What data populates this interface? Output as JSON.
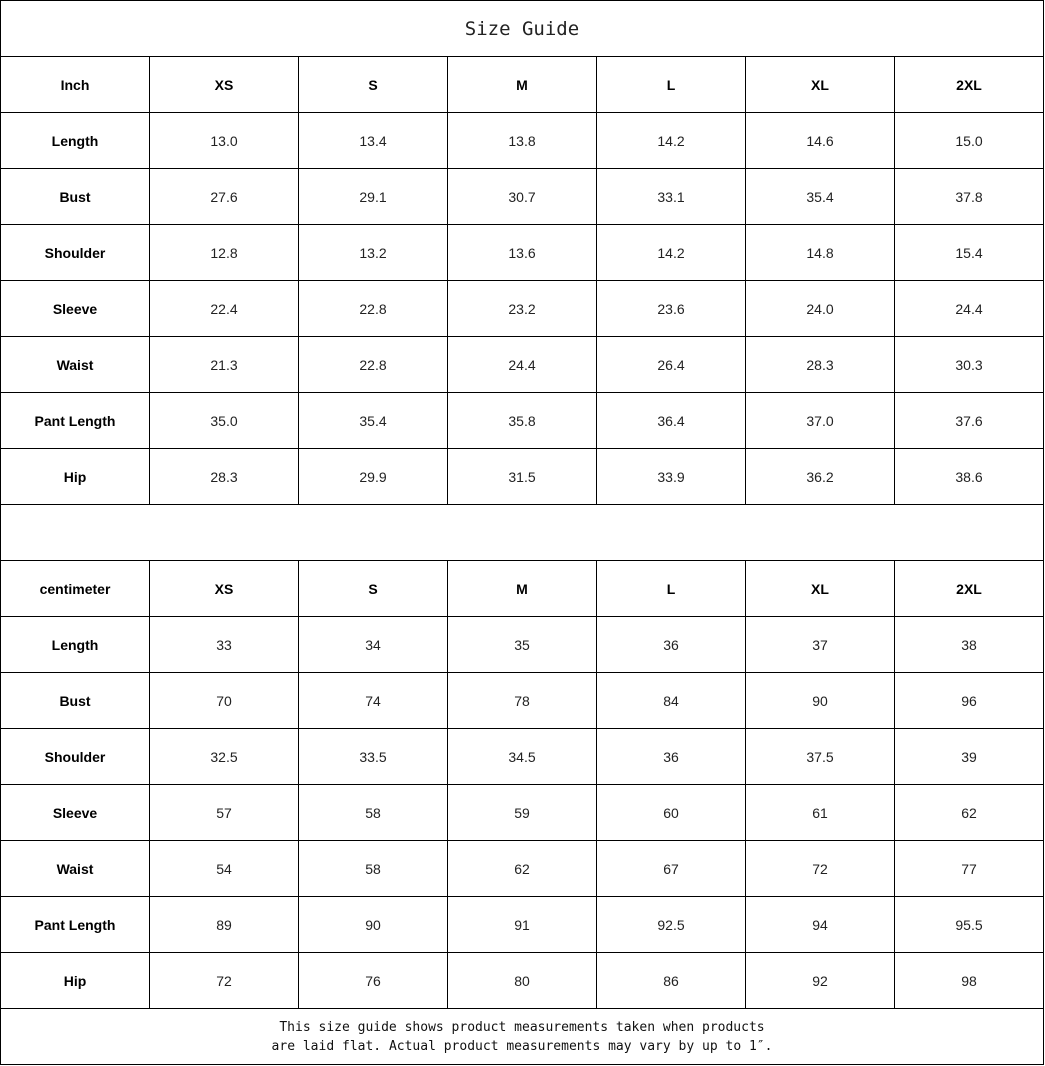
{
  "title": "Size Guide",
  "sizes": [
    "XS",
    "S",
    "M",
    "L",
    "XL",
    "2XL"
  ],
  "tables": [
    {
      "unit": "Inch",
      "rows": [
        {
          "label": "Length",
          "values": [
            "13.0",
            "13.4",
            "13.8",
            "14.2",
            "14.6",
            "15.0"
          ]
        },
        {
          "label": "Bust",
          "values": [
            "27.6",
            "29.1",
            "30.7",
            "33.1",
            "35.4",
            "37.8"
          ]
        },
        {
          "label": "Shoulder",
          "values": [
            "12.8",
            "13.2",
            "13.6",
            "14.2",
            "14.8",
            "15.4"
          ]
        },
        {
          "label": "Sleeve",
          "values": [
            "22.4",
            "22.8",
            "23.2",
            "23.6",
            "24.0",
            "24.4"
          ]
        },
        {
          "label": "Waist",
          "values": [
            "21.3",
            "22.8",
            "24.4",
            "26.4",
            "28.3",
            "30.3"
          ]
        },
        {
          "label": "Pant Length",
          "values": [
            "35.0",
            "35.4",
            "35.8",
            "36.4",
            "37.0",
            "37.6"
          ]
        },
        {
          "label": "Hip",
          "values": [
            "28.3",
            "29.9",
            "31.5",
            "33.9",
            "36.2",
            "38.6"
          ]
        }
      ]
    },
    {
      "unit": "centimeter",
      "rows": [
        {
          "label": "Length",
          "values": [
            "33",
            "34",
            "35",
            "36",
            "37",
            "38"
          ]
        },
        {
          "label": "Bust",
          "values": [
            "70",
            "74",
            "78",
            "84",
            "90",
            "96"
          ]
        },
        {
          "label": "Shoulder",
          "values": [
            "32.5",
            "33.5",
            "34.5",
            "36",
            "37.5",
            "39"
          ]
        },
        {
          "label": "Sleeve",
          "values": [
            "57",
            "58",
            "59",
            "60",
            "61",
            "62"
          ]
        },
        {
          "label": "Waist",
          "values": [
            "54",
            "58",
            "62",
            "67",
            "72",
            "77"
          ]
        },
        {
          "label": "Pant Length",
          "values": [
            "89",
            "90",
            "91",
            "92.5",
            "94",
            "95.5"
          ]
        },
        {
          "label": "Hip",
          "values": [
            "72",
            "76",
            "80",
            "86",
            "92",
            "98"
          ]
        }
      ]
    }
  ],
  "note": {
    "line1": "This size guide shows product measurements taken when products",
    "line2": "are laid flat. Actual product measurements may vary by up to 1″."
  }
}
